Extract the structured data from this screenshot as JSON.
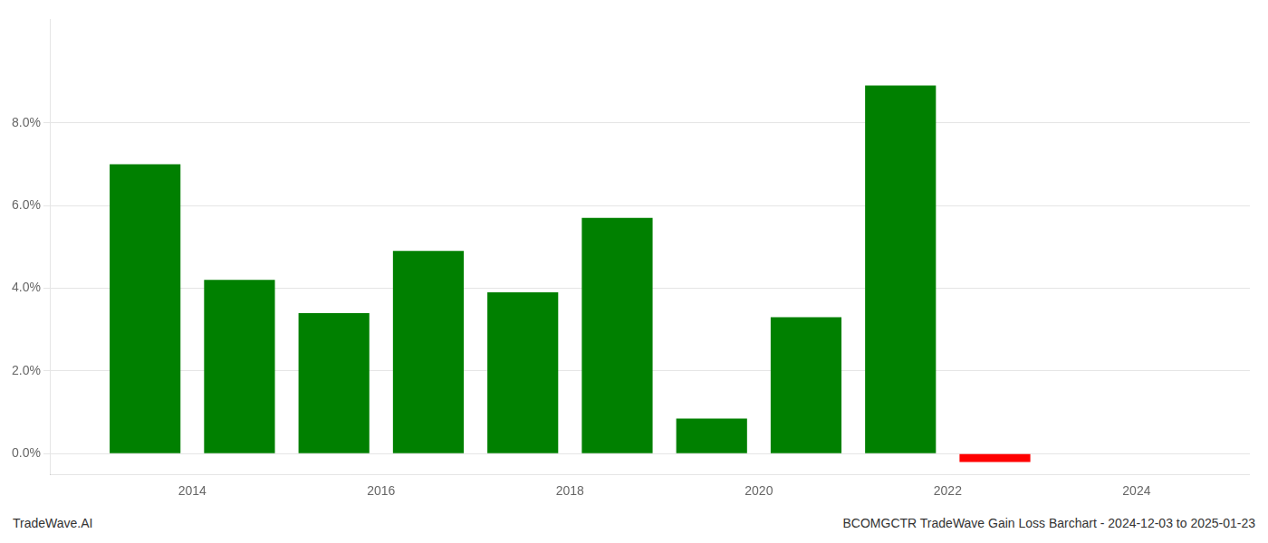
{
  "chart_data": {
    "type": "bar",
    "x": [
      2013.5,
      2014.5,
      2015.5,
      2016.5,
      2017.5,
      2018.5,
      2019.5,
      2020.5,
      2021.5,
      2022.5
    ],
    "values": [
      0.07,
      0.042,
      0.034,
      0.049,
      0.039,
      0.057,
      0.0085,
      0.033,
      0.089,
      -0.002
    ],
    "colors": [
      "#008000",
      "#008000",
      "#008000",
      "#008000",
      "#008000",
      "#008000",
      "#008000",
      "#008000",
      "#008000",
      "#ff0000"
    ],
    "xlim": [
      2012.5,
      2025.2
    ],
    "xticks": [
      2014,
      2016,
      2018,
      2020,
      2022,
      2024
    ],
    "ylim": [
      -0.005,
      0.105
    ],
    "yticks": [
      {
        "value": 0.0,
        "label": "0.0%"
      },
      {
        "value": 0.02,
        "label": "2.0%"
      },
      {
        "value": 0.04,
        "label": "4.0%"
      },
      {
        "value": 0.06,
        "label": "6.0%"
      },
      {
        "value": 0.08,
        "label": "8.0%"
      }
    ],
    "grid": true,
    "annotations": [
      "TradeWave.AI",
      "BCOMGCTR TradeWave Gain Loss Barchart - 2024-12-03 to 2025-01-23"
    ]
  }
}
